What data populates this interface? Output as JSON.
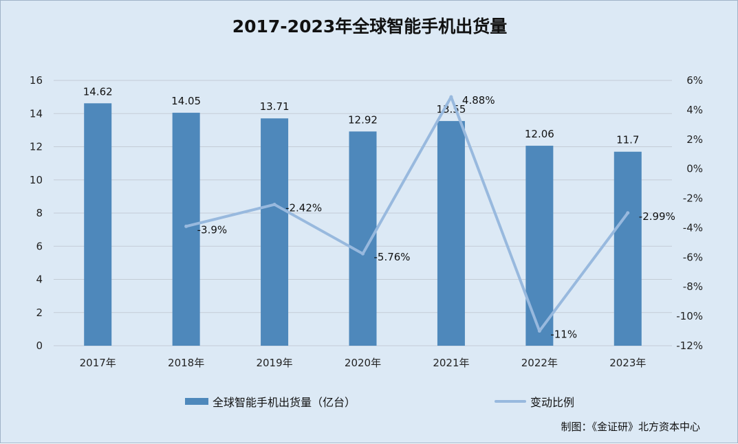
{
  "title": "2017-2023年全球智能手机出货量",
  "source": "制图：《金证研》北方资本中心",
  "chart_data": {
    "type": "bar",
    "categories": [
      "2017年",
      "2018年",
      "2019年",
      "2020年",
      "2021年",
      "2022年",
      "2023年"
    ],
    "series": [
      {
        "name": "全球智能手机出货量（亿台）",
        "type": "bar",
        "axis": "left",
        "color": "#4e88bb",
        "values": [
          14.62,
          14.05,
          13.71,
          12.92,
          13.55,
          12.06,
          11.7
        ],
        "labels": [
          "14.62",
          "14.05",
          "13.71",
          "12.92",
          "13.55",
          "12.06",
          "11.7"
        ]
      },
      {
        "name": "变动比例",
        "type": "line",
        "axis": "right",
        "color": "#98b9de",
        "values": [
          null,
          -3.9,
          -2.42,
          -5.76,
          4.88,
          -11,
          -2.99
        ],
        "labels": [
          null,
          "-3.9%",
          "-2.42%",
          "-5.76%",
          "4.88%",
          "-11%",
          "-2.99%"
        ]
      }
    ],
    "y_left": {
      "min": 0,
      "max": 16,
      "ticks": [
        "0",
        "2",
        "4",
        "6",
        "8",
        "10",
        "12",
        "14",
        "16"
      ]
    },
    "y_right": {
      "min": -12,
      "max": 6,
      "ticks": [
        "-12%",
        "-10%",
        "-8%",
        "-6%",
        "-4%",
        "-2%",
        "0%",
        "2%",
        "4%",
        "6%"
      ]
    },
    "grid": true,
    "legend_position": "bottom"
  }
}
